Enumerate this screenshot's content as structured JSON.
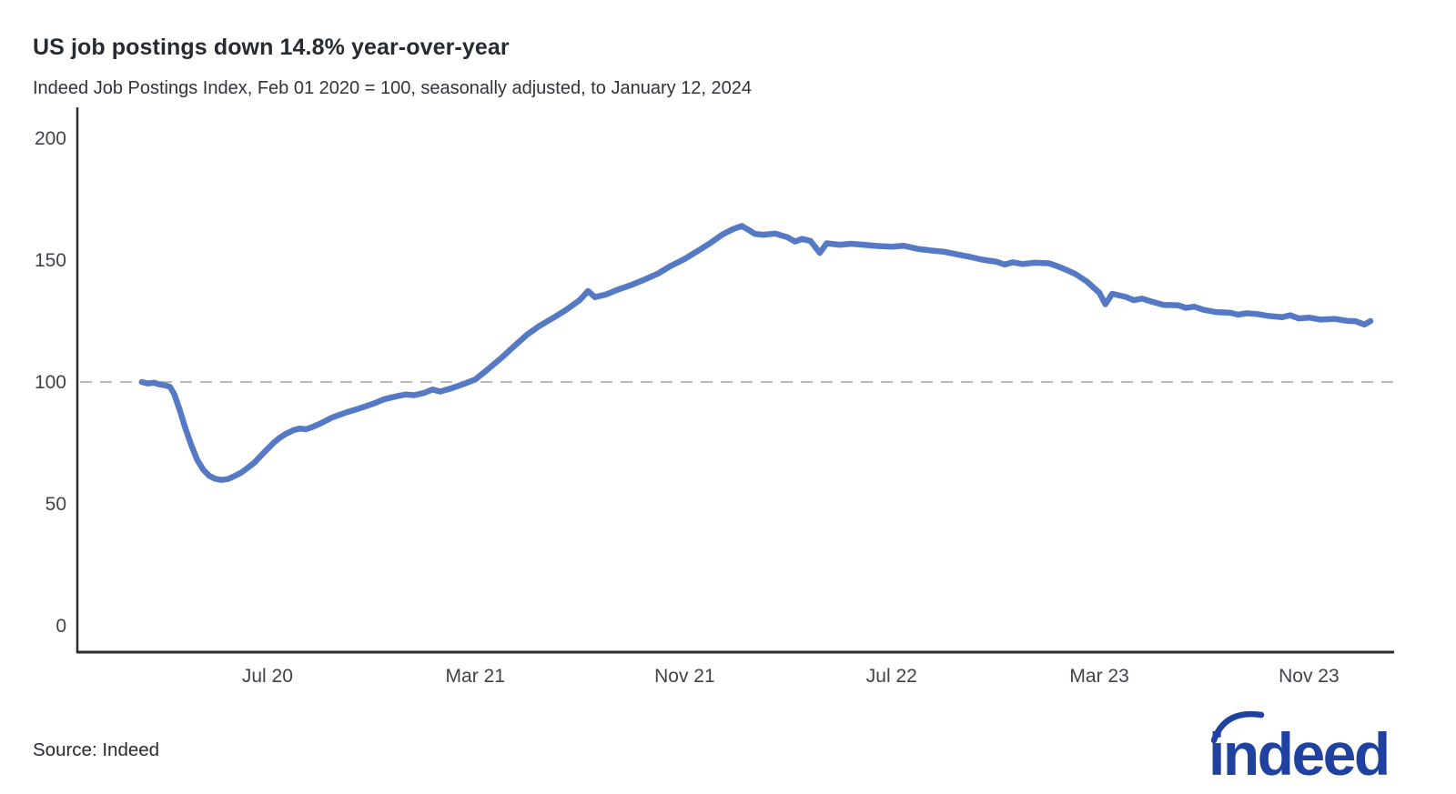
{
  "header": {
    "title": "US job postings down 14.8% year-over-year",
    "subtitle": "Indeed Job Postings Index, Feb 01 2020 = 100, seasonally adjusted, to January 12, 2024"
  },
  "footer": {
    "source": "Source: Indeed",
    "logo_text": "indeed"
  },
  "colors": {
    "line": "#5579c5",
    "dashed_reference": "#bababa",
    "axis": "#2d2d2d",
    "tick_text": "#3f434a",
    "logo": "#1f419f"
  },
  "chart_data": {
    "type": "line",
    "title": "US job postings down 14.8% year-over-year",
    "subtitle": "Indeed Job Postings Index, Feb 01 2020 = 100, seasonally adjusted, to January 12, 2024",
    "xlabel": "",
    "ylabel": "",
    "ylim": [
      0,
      200
    ],
    "y_ticks": [
      0,
      50,
      100,
      150,
      200
    ],
    "x_epoch": "2020-02-01",
    "x_ticks": [
      {
        "label": "Jul 20",
        "date": "2020-07-01"
      },
      {
        "label": "Mar 21",
        "date": "2021-03-01"
      },
      {
        "label": "Nov 21",
        "date": "2021-11-01"
      },
      {
        "label": "Jul 22",
        "date": "2022-07-01"
      },
      {
        "label": "Mar 23",
        "date": "2023-03-01"
      },
      {
        "label": "Nov 23",
        "date": "2023-11-01"
      }
    ],
    "baseline": 100,
    "grid": "off",
    "legend": "none",
    "series": [
      {
        "name": "Indeed Job Postings Index (US, seasonally adjusted)",
        "points": [
          [
            "2020-02-05",
            100
          ],
          [
            "2020-02-12",
            99.4
          ],
          [
            "2020-02-19",
            99.7
          ],
          [
            "2020-02-26",
            99.0
          ],
          [
            "2020-03-04",
            98.6
          ],
          [
            "2020-03-09",
            98.0
          ],
          [
            "2020-03-14",
            95.0
          ],
          [
            "2020-03-20",
            89.0
          ],
          [
            "2020-03-27",
            81.0
          ],
          [
            "2020-04-03",
            74.0
          ],
          [
            "2020-04-10",
            68.0
          ],
          [
            "2020-04-17",
            64.0
          ],
          [
            "2020-04-24",
            61.5
          ],
          [
            "2020-05-01",
            60.3
          ],
          [
            "2020-05-08",
            59.8
          ],
          [
            "2020-05-16",
            60.2
          ],
          [
            "2020-05-24",
            61.5
          ],
          [
            "2020-06-01",
            63.0
          ],
          [
            "2020-06-08",
            64.8
          ],
          [
            "2020-06-16",
            67.0
          ],
          [
            "2020-06-24",
            70.0
          ],
          [
            "2020-07-01",
            72.5
          ],
          [
            "2020-07-08",
            75.0
          ],
          [
            "2020-07-15",
            77.0
          ],
          [
            "2020-07-23",
            78.8
          ],
          [
            "2020-08-01",
            80.3
          ],
          [
            "2020-08-08",
            80.9
          ],
          [
            "2020-08-15",
            80.6
          ],
          [
            "2020-08-23",
            81.6
          ],
          [
            "2020-09-01",
            83.0
          ],
          [
            "2020-09-15",
            85.5
          ],
          [
            "2020-10-01",
            87.5
          ],
          [
            "2020-10-15",
            89.0
          ],
          [
            "2020-11-01",
            91.0
          ],
          [
            "2020-11-15",
            93.0
          ],
          [
            "2020-12-01",
            94.3
          ],
          [
            "2020-12-10",
            94.9
          ],
          [
            "2020-12-20",
            94.6
          ],
          [
            "2021-01-01",
            95.6
          ],
          [
            "2021-01-10",
            96.9
          ],
          [
            "2021-01-19",
            96.1
          ],
          [
            "2021-02-01",
            97.4
          ],
          [
            "2021-02-14",
            99.0
          ],
          [
            "2021-03-01",
            101.0
          ],
          [
            "2021-03-15",
            105.0
          ],
          [
            "2021-04-01",
            110.0
          ],
          [
            "2021-04-15",
            114.5
          ],
          [
            "2021-05-01",
            119.5
          ],
          [
            "2021-05-15",
            123.0
          ],
          [
            "2021-06-01",
            126.5
          ],
          [
            "2021-06-15",
            129.5
          ],
          [
            "2021-07-01",
            133.5
          ],
          [
            "2021-07-11",
            137.3
          ],
          [
            "2021-07-19",
            134.8
          ],
          [
            "2021-08-01",
            135.9
          ],
          [
            "2021-08-15",
            137.9
          ],
          [
            "2021-09-01",
            140.0
          ],
          [
            "2021-09-15",
            142.0
          ],
          [
            "2021-10-01",
            144.5
          ],
          [
            "2021-10-15",
            147.5
          ],
          [
            "2021-11-01",
            150.5
          ],
          [
            "2021-11-15",
            153.5
          ],
          [
            "2021-12-01",
            157.0
          ],
          [
            "2021-12-15",
            160.5
          ],
          [
            "2021-12-28",
            162.8
          ],
          [
            "2022-01-07",
            164.0
          ],
          [
            "2022-01-15",
            162.3
          ],
          [
            "2022-01-22",
            160.8
          ],
          [
            "2022-02-01",
            160.4
          ],
          [
            "2022-02-15",
            160.9
          ],
          [
            "2022-03-01",
            159.4
          ],
          [
            "2022-03-10",
            157.6
          ],
          [
            "2022-03-18",
            158.7
          ],
          [
            "2022-03-28",
            157.9
          ],
          [
            "2022-04-08",
            153.0
          ],
          [
            "2022-04-16",
            156.9
          ],
          [
            "2022-05-01",
            156.3
          ],
          [
            "2022-05-15",
            156.7
          ],
          [
            "2022-06-01",
            156.2
          ],
          [
            "2022-06-15",
            155.8
          ],
          [
            "2022-07-01",
            155.5
          ],
          [
            "2022-07-15",
            155.9
          ],
          [
            "2022-08-01",
            154.6
          ],
          [
            "2022-08-15",
            154.0
          ],
          [
            "2022-09-01",
            153.4
          ],
          [
            "2022-09-15",
            152.4
          ],
          [
            "2022-10-01",
            151.3
          ],
          [
            "2022-10-15",
            150.2
          ],
          [
            "2022-11-01",
            149.3
          ],
          [
            "2022-11-10",
            148.2
          ],
          [
            "2022-11-20",
            149.1
          ],
          [
            "2022-12-01",
            148.4
          ],
          [
            "2022-12-15",
            148.9
          ],
          [
            "2023-01-01",
            148.7
          ],
          [
            "2023-01-10",
            147.6
          ],
          [
            "2023-01-20",
            146.2
          ],
          [
            "2023-02-01",
            144.3
          ],
          [
            "2023-02-14",
            141.3
          ],
          [
            "2023-03-01",
            136.6
          ],
          [
            "2023-03-08",
            131.9
          ],
          [
            "2023-03-16",
            136.2
          ],
          [
            "2023-04-01",
            134.9
          ],
          [
            "2023-04-10",
            133.6
          ],
          [
            "2023-04-20",
            134.2
          ],
          [
            "2023-05-01",
            133.0
          ],
          [
            "2023-05-15",
            131.6
          ],
          [
            "2023-06-01",
            131.5
          ],
          [
            "2023-06-10",
            130.4
          ],
          [
            "2023-06-20",
            130.9
          ],
          [
            "2023-07-01",
            129.6
          ],
          [
            "2023-07-15",
            128.7
          ],
          [
            "2023-08-01",
            128.4
          ],
          [
            "2023-08-10",
            127.6
          ],
          [
            "2023-08-20",
            128.2
          ],
          [
            "2023-09-01",
            127.9
          ],
          [
            "2023-09-15",
            127.1
          ],
          [
            "2023-10-01",
            126.6
          ],
          [
            "2023-10-10",
            127.4
          ],
          [
            "2023-10-20",
            126.1
          ],
          [
            "2023-11-01",
            126.4
          ],
          [
            "2023-11-15",
            125.6
          ],
          [
            "2023-12-01",
            125.9
          ],
          [
            "2023-12-15",
            125.1
          ],
          [
            "2023-12-26",
            124.9
          ],
          [
            "2024-01-05",
            123.6
          ],
          [
            "2024-01-12",
            125.0
          ]
        ]
      }
    ]
  }
}
